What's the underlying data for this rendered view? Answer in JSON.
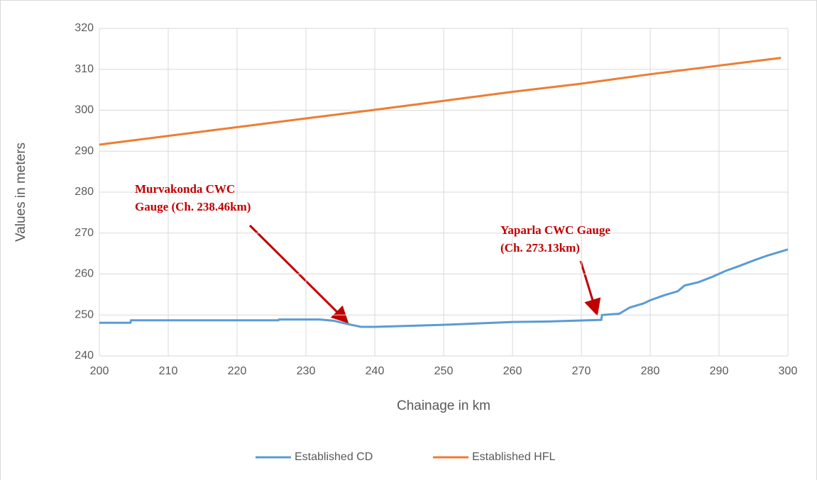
{
  "chart_data": {
    "type": "line",
    "xlabel": "Chainage in km",
    "ylabel": "Values in meters",
    "xlim": [
      200,
      300
    ],
    "xticks": [
      200,
      210,
      220,
      230,
      240,
      250,
      260,
      270,
      280,
      290,
      300
    ],
    "ylim": [
      240,
      320
    ],
    "yticks": [
      240,
      250,
      260,
      270,
      280,
      290,
      300,
      310,
      320
    ],
    "grid": true,
    "legend": "bottom",
    "series": [
      {
        "name": "Established CD",
        "color": "#5b9bd5",
        "x": [
          200,
          204.5,
          204.6,
          226,
          226.1,
          232,
          234,
          236,
          238,
          240,
          250,
          260,
          265,
          272.9,
          273,
          275.5,
          277,
          279,
          280,
          282,
          284,
          285,
          287,
          289,
          291,
          293,
          295,
          297,
          300
        ],
        "values": [
          248.1,
          248.1,
          248.7,
          248.7,
          248.9,
          248.9,
          248.6,
          247.8,
          247.1,
          247.1,
          247.6,
          248.3,
          248.4,
          248.8,
          250.0,
          250.3,
          251.8,
          252.8,
          253.6,
          254.8,
          255.8,
          257.2,
          258.0,
          259.3,
          260.8,
          262.0,
          263.3,
          264.5,
          266.0
        ]
      },
      {
        "name": "Established HFL",
        "color": "#ed7d31",
        "x": [
          200,
          230,
          240,
          250,
          260,
          270,
          280,
          290,
          299
        ],
        "values": [
          291.6,
          298.0,
          300.1,
          302.3,
          304.5,
          306.5,
          308.8,
          310.9,
          312.8
        ]
      }
    ],
    "annotations": [
      {
        "lines": [
          "Murvakonda CWC",
          "Gauge (Ch. 238.46km)"
        ]
      },
      {
        "lines": [
          "Yaparla CWC Gauge",
          "(Ch. 273.13km)"
        ]
      }
    ]
  }
}
